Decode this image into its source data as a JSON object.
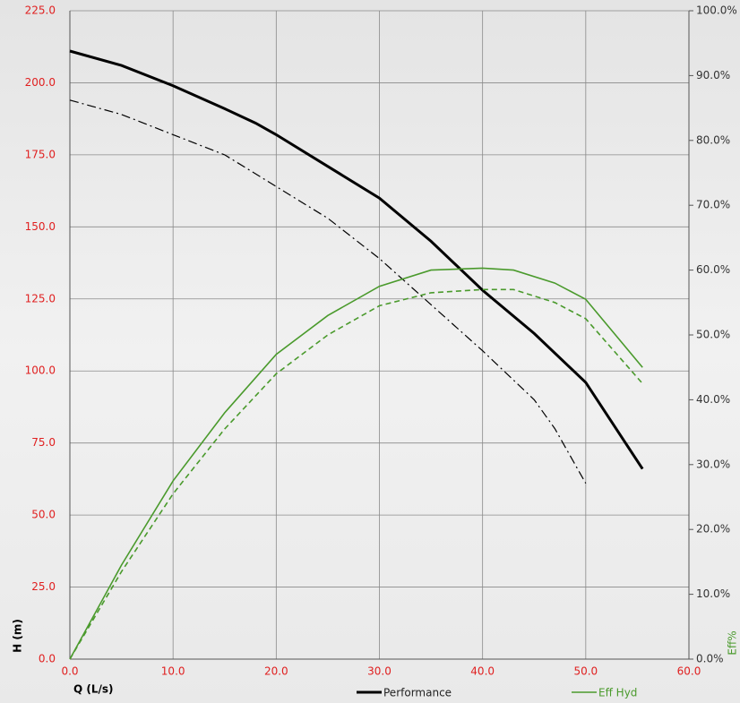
{
  "chart_data": {
    "type": "line",
    "xlabel": "Q (L/s)",
    "ylabel": "H (m)",
    "y2label": "Eff%",
    "xlim": [
      0,
      60
    ],
    "ylim": [
      0,
      225
    ],
    "y2lim": [
      0,
      100
    ],
    "xticks": [
      {
        "value": 0,
        "label": "0.0"
      },
      {
        "value": 10,
        "label": "10.0"
      },
      {
        "value": 20,
        "label": "20.0"
      },
      {
        "value": 30,
        "label": "30.0"
      },
      {
        "value": 40,
        "label": "40.0"
      },
      {
        "value": 50,
        "label": "50.0"
      },
      {
        "value": 60,
        "label": "60.0"
      }
    ],
    "yticks": [
      {
        "value": 0,
        "label": "0.0"
      },
      {
        "value": 25,
        "label": "25.0"
      },
      {
        "value": 50,
        "label": "50.0"
      },
      {
        "value": 75,
        "label": "75.0"
      },
      {
        "value": 100,
        "label": "100.0"
      },
      {
        "value": 125,
        "label": "125.0"
      },
      {
        "value": 150,
        "label": "150.0"
      },
      {
        "value": 175,
        "label": "175.0"
      },
      {
        "value": 200,
        "label": "200.0"
      },
      {
        "value": 225,
        "label": "225.0"
      }
    ],
    "y2ticks": [
      {
        "value": 0,
        "label": "0.0%"
      },
      {
        "value": 10,
        "label": "10.0%"
      },
      {
        "value": 20,
        "label": "20.0%"
      },
      {
        "value": 30,
        "label": "30.0%"
      },
      {
        "value": 40,
        "label": "40.0%"
      },
      {
        "value": 50,
        "label": "50.0%"
      },
      {
        "value": 60,
        "label": "60.0%"
      },
      {
        "value": 70,
        "label": "70.0%"
      },
      {
        "value": 80,
        "label": "80.0%"
      },
      {
        "value": 90,
        "label": "90.0%"
      },
      {
        "value": 100,
        "label": "100.0%"
      }
    ],
    "grid": true,
    "series": [
      {
        "name": "Performance",
        "color": "#000000",
        "dash": "solid",
        "width": 3,
        "x": [
          0,
          5,
          10,
          15,
          18,
          20,
          25,
          30,
          35,
          40,
          45,
          50,
          55.5
        ],
        "values": [
          211,
          206,
          199,
          191,
          186,
          182,
          171,
          160,
          145,
          128,
          113,
          96,
          66
        ]
      },
      {
        "color": "#000000",
        "dash": "dashdot",
        "width": 1.2,
        "x": [
          0,
          5,
          10,
          15,
          20,
          25,
          30,
          35,
          40,
          45,
          47,
          50
        ],
        "values": [
          194,
          189,
          182,
          175,
          164,
          153,
          139,
          123,
          107,
          90,
          80,
          61
        ]
      },
      {
        "name": "Eff Hyd",
        "color": "#4a9a2c",
        "dash": "solid",
        "width": 1.6,
        "axis": "y2",
        "x": [
          0,
          5,
          10,
          15,
          20,
          25,
          30,
          35,
          40,
          43,
          47,
          50,
          55.5
        ],
        "values": [
          0,
          14.5,
          27.5,
          38,
          47,
          53,
          57.5,
          60,
          60.3,
          60,
          58,
          55.5,
          45
        ]
      },
      {
        "color": "#4a9a2c",
        "dash": "dashed",
        "width": 1.6,
        "axis": "y2",
        "x": [
          0,
          5,
          10,
          15,
          20,
          25,
          30,
          35,
          40,
          43,
          47,
          50,
          55.5
        ],
        "values": [
          0,
          13.5,
          25.5,
          35.5,
          44,
          50,
          54.5,
          56.5,
          57,
          57,
          55,
          52.5,
          42.5
        ]
      }
    ]
  }
}
